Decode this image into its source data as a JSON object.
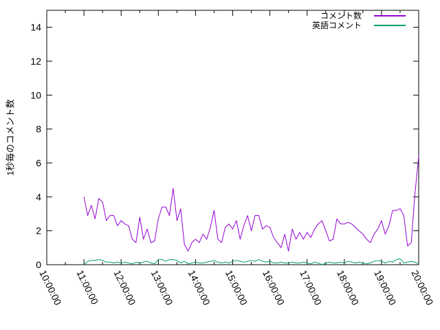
{
  "chart_data": {
    "type": "line",
    "title": "",
    "xlabel": "",
    "ylabel": "1秒毎のコメント数",
    "grid": false,
    "legend_position": "top-right",
    "x_axis": {
      "min_hour": 10,
      "max_hour": 20,
      "tick_hours": [
        10,
        11,
        12,
        13,
        14,
        15,
        16,
        17,
        18,
        19,
        20
      ],
      "tick_labels": [
        "10:00:00",
        "11:00:00",
        "12:00:00",
        "13:00:00",
        "14:00:00",
        "15:00:00",
        "16:00:00",
        "17:00:00",
        "18:00:00",
        "19:00:00",
        "20:00:00"
      ],
      "minor_tick_interval_hours": 0.5
    },
    "y_axis": {
      "min": 0,
      "max": 15,
      "tick_values": [
        0,
        2,
        4,
        6,
        8,
        10,
        12,
        14
      ],
      "tick_labels": [
        "0",
        "2",
        "4",
        "6",
        "8",
        "10",
        "12",
        "14"
      ]
    },
    "series": [
      {
        "name": "コメント数",
        "color": "#9400d3",
        "start_hour": 11.0,
        "step_hours": 0.1,
        "values": [
          4.0,
          2.9,
          3.5,
          2.7,
          3.9,
          3.7,
          2.6,
          2.9,
          2.9,
          2.3,
          2.6,
          2.4,
          2.3,
          1.5,
          1.3,
          2.8,
          1.5,
          2.1,
          1.3,
          1.4,
          2.7,
          3.4,
          3.4,
          2.9,
          4.5,
          2.6,
          3.3,
          1.2,
          0.8,
          1.3,
          1.5,
          1.3,
          1.8,
          1.5,
          2.2,
          3.2,
          1.5,
          1.3,
          2.2,
          2.4,
          2.1,
          2.6,
          1.5,
          2.3,
          2.9,
          2.0,
          2.9,
          2.9,
          2.1,
          2.3,
          2.2,
          1.6,
          1.3,
          1.0,
          1.8,
          0.8,
          2.1,
          1.5,
          1.9,
          1.5,
          1.9,
          1.6,
          2.1,
          2.4,
          2.6,
          2.0,
          1.4,
          1.5,
          2.7,
          2.4,
          2.4,
          2.5,
          2.4,
          2.2,
          2.0,
          1.8,
          1.5,
          1.3,
          1.8,
          2.1,
          2.6,
          1.8,
          2.3,
          3.2,
          3.2,
          3.3,
          2.9,
          1.1,
          1.3,
          4.2,
          6.4
        ]
      },
      {
        "name": "英語コメント",
        "color": "#009e73",
        "start_hour": 11.0,
        "step_hours": 0.1,
        "values": [
          0.0,
          0.2,
          0.25,
          0.25,
          0.3,
          0.25,
          0.15,
          0.15,
          0.1,
          0.15,
          0.1,
          0.15,
          0.1,
          0.05,
          0.15,
          0.1,
          0.15,
          0.2,
          0.1,
          0.05,
          0.3,
          0.3,
          0.2,
          0.3,
          0.3,
          0.25,
          0.1,
          0.2,
          0.05,
          0.1,
          0.15,
          0.1,
          0.1,
          0.15,
          0.2,
          0.25,
          0.15,
          0.1,
          0.15,
          0.1,
          0.2,
          0.25,
          0.2,
          0.15,
          0.2,
          0.25,
          0.2,
          0.3,
          0.2,
          0.15,
          0.2,
          0.1,
          0.1,
          0.15,
          0.1,
          0.1,
          0.15,
          0.1,
          0.1,
          0.15,
          0.1,
          0.05,
          0.15,
          0.1,
          0.0,
          0.1,
          0.15,
          0.1,
          0.1,
          0.15,
          0.1,
          0.2,
          0.15,
          0.1,
          0.15,
          0.1,
          0.05,
          0.1,
          0.2,
          0.25,
          0.2,
          0.1,
          0.2,
          0.15,
          0.3,
          0.35,
          0.1,
          0.15,
          0.2,
          0.15,
          0.05
        ]
      }
    ]
  },
  "colors": {
    "background": "#ffffff",
    "axis": "#000000",
    "text": "#000000"
  }
}
